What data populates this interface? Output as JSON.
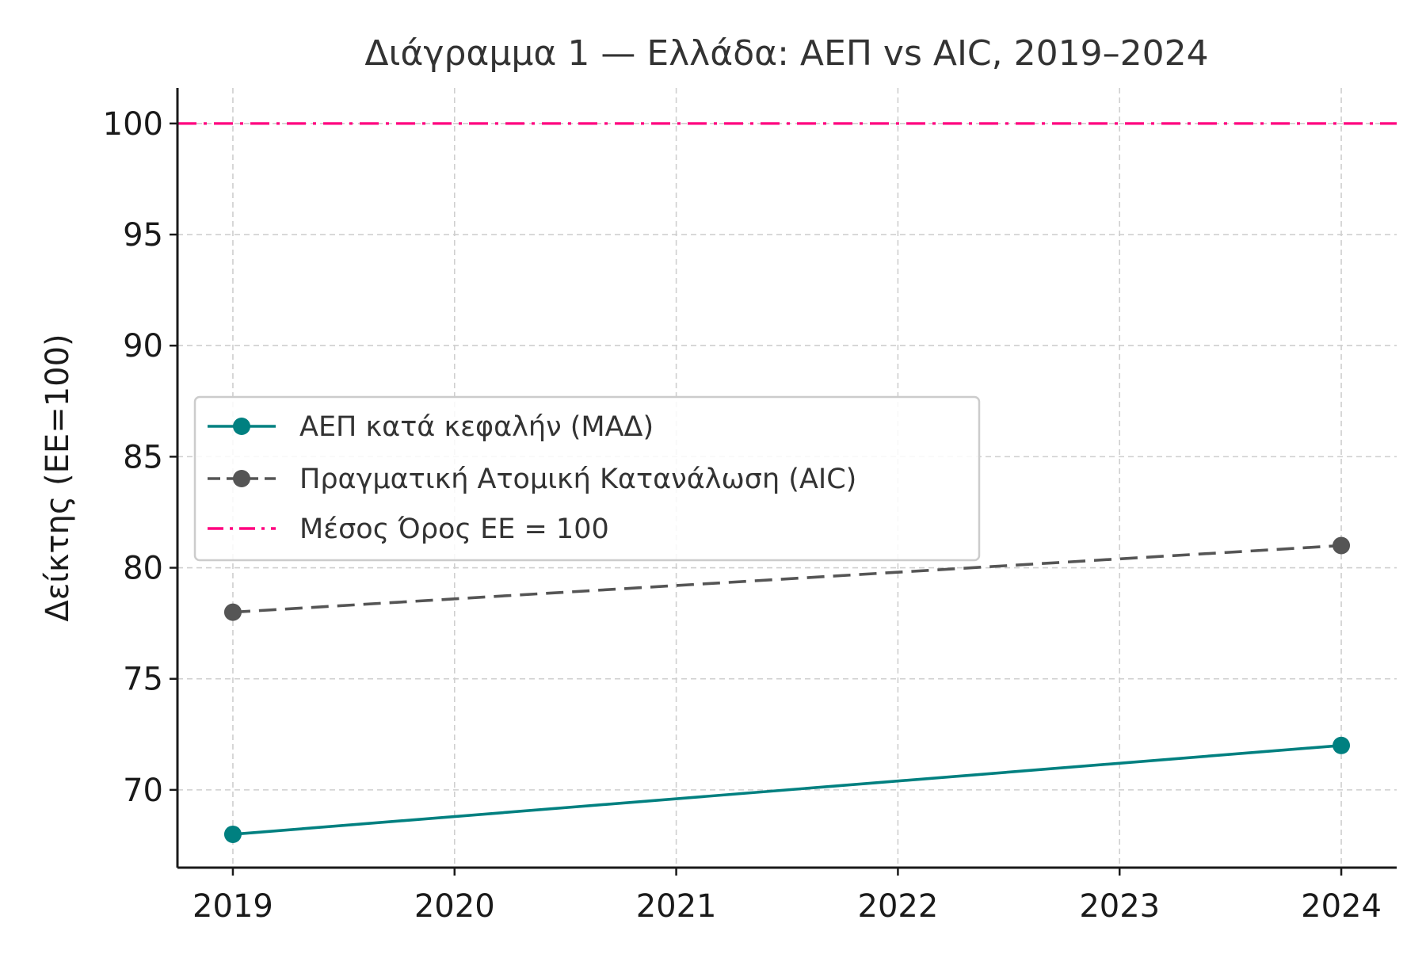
{
  "chart_data": {
    "type": "line",
    "title": "Διάγραμμα 1 — Ελλάδα: ΑΕΠ vs AIC, 2019–2024",
    "xlabel": "",
    "ylabel": "Δείκτης (ΕΕ=100)",
    "x": [
      2019,
      2020,
      2021,
      2022,
      2023,
      2024
    ],
    "x_tick_labels": [
      "2019",
      "2020",
      "2021",
      "2022",
      "2023",
      "2024"
    ],
    "y_ticks": [
      70,
      75,
      80,
      85,
      90,
      95,
      100
    ],
    "y_tick_labels": [
      "70",
      "75",
      "80",
      "85",
      "90",
      "95",
      "100"
    ],
    "xlim": [
      2018.75,
      2024.25
    ],
    "ylim": [
      66.5,
      101.6
    ],
    "grid": true,
    "legend_position": "center-left",
    "series": [
      {
        "name": "ΑΕΠ κατά κεφαλήν (ΜΑΔ)",
        "x": [
          2019,
          2024
        ],
        "values": [
          68,
          72
        ],
        "color": "#008080",
        "style": "solid",
        "marker": "circle"
      },
      {
        "name": "Πραγματική Ατομική Κατανάλωση (AIC)",
        "x": [
          2019,
          2024
        ],
        "values": [
          78,
          81
        ],
        "color": "#555555",
        "style": "dashed",
        "marker": "circle"
      }
    ],
    "reference_lines": [
      {
        "name": "Μέσος Όρος ΕΕ = 100",
        "value": 100,
        "color": "#ff007f",
        "style": "dashdot"
      }
    ]
  }
}
